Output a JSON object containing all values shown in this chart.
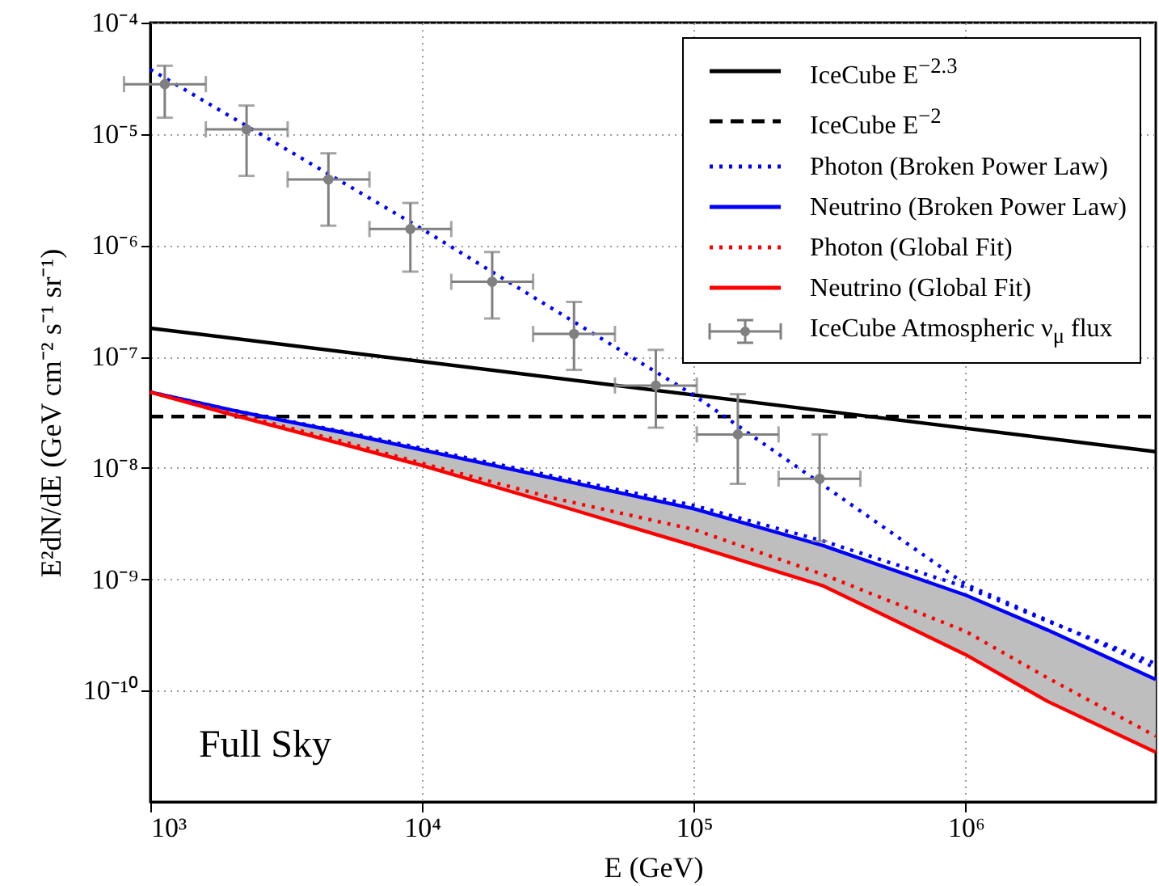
{
  "chart_data": {
    "type": "line",
    "xlabel": "E (GeV)",
    "ylabel": "E²dN/dE (GeV cm⁻² s⁻¹ sr⁻¹)",
    "log": "xy",
    "grid": true,
    "legend": "top right",
    "xlim": [
      1000,
      5000000
    ],
    "ylim": [
      1e-11,
      0.0001
    ],
    "xticks": [
      {
        "value": 1000,
        "label": "10³"
      },
      {
        "value": 10000,
        "label": "10⁴"
      },
      {
        "value": 100000,
        "label": "10⁵"
      },
      {
        "value": 1000000,
        "label": "10⁶"
      }
    ],
    "yticks": [
      {
        "value": 1e-10,
        "label": "10⁻¹⁰"
      },
      {
        "value": 1e-09,
        "label": "10⁻⁹"
      },
      {
        "value": 1e-08,
        "label": "10⁻⁸"
      },
      {
        "value": 1e-07,
        "label": "10⁻⁷"
      },
      {
        "value": 1e-06,
        "label": "10⁻⁶"
      },
      {
        "value": 1e-05,
        "label": "10⁻⁵"
      },
      {
        "value": 0.0001,
        "label": "10⁻⁴"
      }
    ],
    "x": [
      1000,
      2000,
      5000,
      10000,
      30000,
      100000,
      300000,
      1000000,
      2000000,
      5000000
    ],
    "annotations": [
      "Full Sky"
    ],
    "series": [
      {
        "name": "IceCube E$^{−2.3}$",
        "color": "#000000",
        "line_style": "solid",
        "x": [
          1000,
          5000000
        ],
        "values": [
          1.8e-07,
          1.4e-08
        ]
      },
      {
        "name": "IceCube E$^{−2}$",
        "color": "#000000",
        "line_style": "dashed",
        "x": [
          1000,
          5000000
        ],
        "values": [
          2.9e-08,
          2.9e-08
        ]
      },
      {
        "name": "Photon (Broken Power Law)",
        "color": "#0000ff",
        "line_style": "dotted",
        "values": [
          4.8e-08,
          3.3e-08,
          2.15e-08,
          1.5e-08,
          8.5e-09,
          4.6e-09,
          2.2e-09,
          8.5e-10,
          4.2e-10,
          1.75e-10
        ]
      },
      {
        "name": "Neutrino (Broken Power Law)",
        "color": "#0000ff",
        "line_style": "solid",
        "values": [
          4.8e-08,
          3.3e-08,
          2.1e-08,
          1.45e-08,
          8.1e-09,
          4.3e-09,
          2e-09,
          7.2e-10,
          3.5e-10,
          1.26e-10
        ],
        "lower": [
          4.8e-08,
          3e-08,
          1.66e-08,
          1.05e-08,
          4.8e-09,
          2e-09,
          8.7e-10,
          2.1e-10,
          8e-11,
          2.8e-11
        ],
        "upper": [
          4.8e-08,
          3.3e-08,
          2.1e-08,
          1.45e-08,
          8.1e-09,
          4.3e-09,
          2e-09,
          7.2e-10,
          3.5e-10,
          1.26e-10
        ]
      },
      {
        "name": "Photon (Global Fit)",
        "color": "#ff0000",
        "line_style": "dotted",
        "values": [
          4.8e-08,
          3.1e-08,
          1.75e-08,
          1.1e-08,
          5.4e-09,
          2.8e-09,
          1.1e-09,
          3.4e-10,
          1.3e-10,
          3.9e-11
        ]
      },
      {
        "name": "Neutrino (Global Fit)",
        "color": "#ff0000",
        "line_style": "solid",
        "values": [
          4.8e-08,
          3e-08,
          1.66e-08,
          1.05e-08,
          4.8e-09,
          2e-09,
          8.7e-10,
          2.1e-10,
          8e-11,
          2.8e-11
        ]
      },
      {
        "name": "IceCube Atmospheric ν$_{μ}$ flux",
        "type": "scatter",
        "marker": "circle",
        "color": "#808080",
        "x": [
          1130,
          2260,
          4520,
          9050,
          18100,
          36200,
          72400,
          145000,
          290000
        ],
        "values": [
          2.8e-05,
          1.1e-05,
          3.9e-06,
          1.4e-06,
          4.7e-07,
          1.6e-07,
          5.5e-08,
          2e-08,
          8e-09
        ],
        "errors": [
          [
            1.4e-05,
            4.1e-05
          ],
          [
            4.2e-06,
            1.8e-05
          ],
          [
            1.5e-06,
            6.7e-06
          ],
          [
            5.8e-07,
            2.4e-06
          ],
          [
            2.2e-07,
            8.7e-07
          ],
          [
            7.6e-08,
            3.1e-07
          ],
          [
            2.3e-08,
            1.15e-07
          ],
          [
            7.2e-09,
            4.6e-08
          ],
          [
            2.2e-09,
            2e-08
          ]
        ],
        "xerrors": [
          [
            800,
            1600
          ],
          [
            1600,
            3200
          ],
          [
            3200,
            6400
          ],
          [
            6400,
            12800
          ],
          [
            12800,
            25600
          ],
          [
            25600,
            51200
          ],
          [
            51200,
            102400
          ],
          [
            102400,
            204800
          ],
          [
            204800,
            409600
          ]
        ]
      },
      {
        "color": "#0000ff",
        "line_style": "dotted",
        "x": [
          1000,
          10000,
          100000,
          1000000,
          5000000
        ],
        "values": [
          3.8e-05,
          1.4e-06,
          4.5e-08,
          9e-10,
          1.6e-10
        ]
      }
    ]
  }
}
